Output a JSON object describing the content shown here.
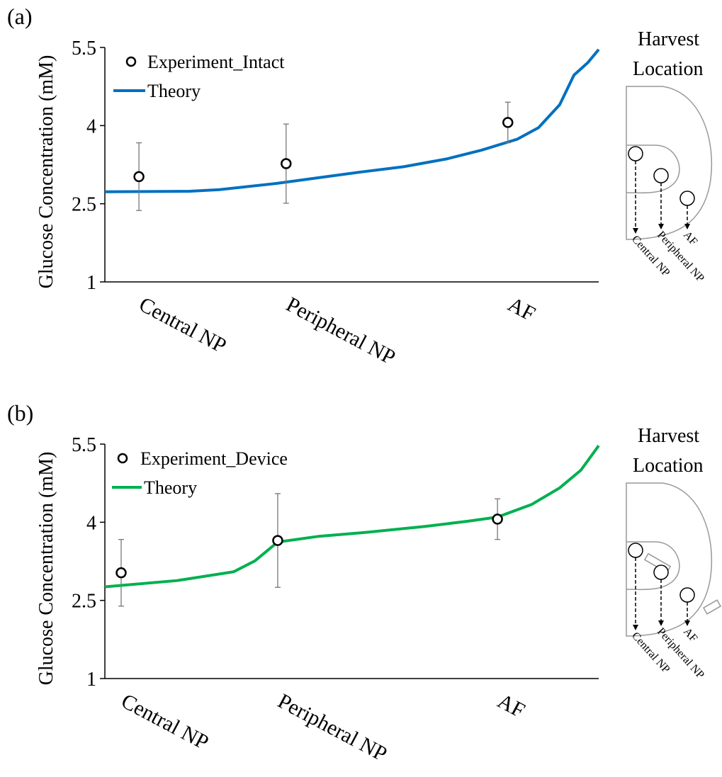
{
  "chart_data": [
    {
      "type": "line",
      "panel_label": "(a)",
      "ylabel": "Glucose Concentration (mM)",
      "xlim": [
        0,
        100
      ],
      "ylim": [
        1,
        5.5
      ],
      "yticks": [
        1,
        2.5,
        4,
        5.5
      ],
      "grid": false,
      "categories": [
        "Central NP",
        "Peripheral NP",
        "AF"
      ],
      "series": [
        {
          "name": "Experiment_Intact",
          "kind": "errorbar",
          "color": "#000000",
          "error_color": "#777777",
          "x": [
            6.9,
            36.7,
            81.6
          ],
          "values": [
            3.02,
            3.27,
            4.06
          ],
          "errors": [
            0.65,
            0.76,
            0.39
          ]
        },
        {
          "name": "Theory",
          "kind": "line",
          "color": "#0070c0",
          "x": [
            0,
            17.2,
            23.2,
            34.7,
            43.3,
            51.9,
            60.5,
            69.2,
            76.3,
            83.5,
            87.8,
            92.1,
            95.0,
            97.8,
            100
          ],
          "values": [
            2.73,
            2.74,
            2.77,
            2.89,
            3.0,
            3.11,
            3.21,
            3.36,
            3.53,
            3.74,
            3.96,
            4.4,
            4.97,
            5.21,
            5.46
          ]
        }
      ],
      "inset": {
        "title": [
          "Harvest",
          "Location"
        ],
        "labels": [
          "Central NP",
          "Peripheral NP",
          "AF"
        ]
      }
    },
    {
      "type": "line",
      "panel_label": "(b)",
      "ylabel": "Glucose Concentration (mM)",
      "xlim": [
        0,
        100
      ],
      "ylim": [
        1,
        5.5
      ],
      "yticks": [
        1,
        2.5,
        4,
        5.5
      ],
      "grid": false,
      "categories": [
        "Central NP",
        "Peripheral NP",
        "AF"
      ],
      "series": [
        {
          "name": "Experiment_Device",
          "kind": "errorbar",
          "color": "#000000",
          "error_color": "#777777",
          "x": [
            3.3,
            35.0,
            79.5
          ],
          "values": [
            3.03,
            3.65,
            4.06
          ],
          "errors": [
            0.64,
            0.9,
            0.39
          ]
        },
        {
          "name": "Theory",
          "kind": "line",
          "color": "#00b050",
          "x": [
            0,
            14.6,
            26.1,
            30.4,
            35.0,
            43.3,
            53.4,
            64.8,
            73.5,
            79.5,
            86.4,
            92.1,
            96.4,
            100
          ],
          "values": [
            2.76,
            2.88,
            3.05,
            3.26,
            3.62,
            3.73,
            3.81,
            3.92,
            4.02,
            4.1,
            4.34,
            4.66,
            5.0,
            5.47
          ]
        }
      ],
      "inset": {
        "title": [
          "Harvest",
          "Location"
        ],
        "labels": [
          "Central NP",
          "Peripheral NP",
          "AF"
        ]
      }
    }
  ]
}
